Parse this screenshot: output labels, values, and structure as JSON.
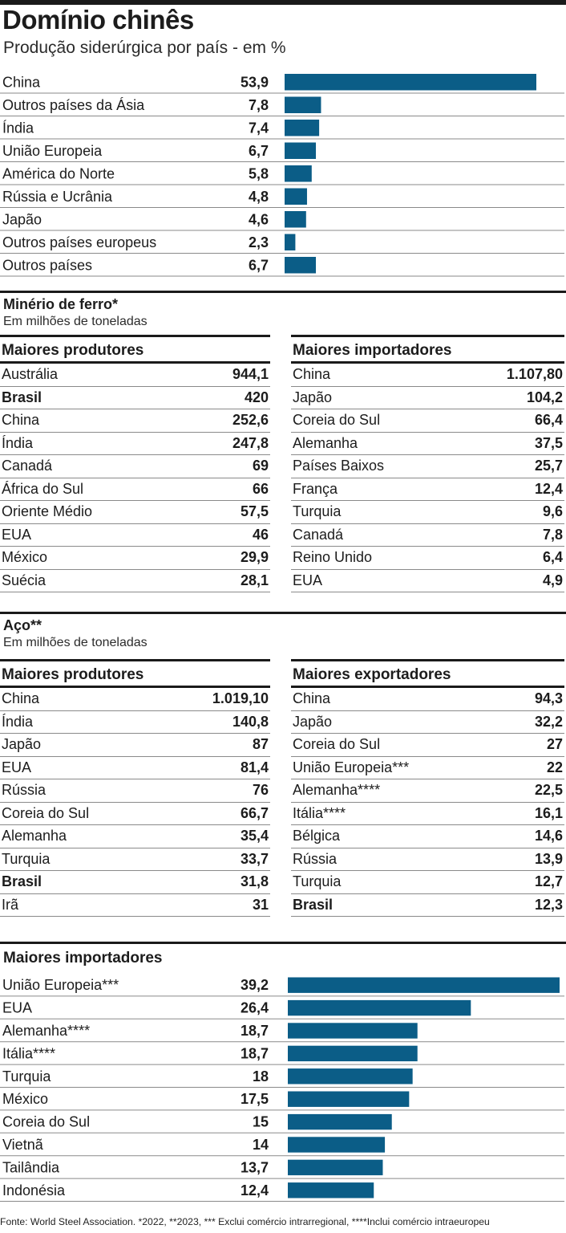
{
  "title": "Domínio chinês",
  "subtitle": "Produção siderúrgica por país - em %",
  "chart_data": [
    {
      "type": "bar",
      "title": "Produção siderúrgica por país - em %",
      "categories": [
        "China",
        "Outros países da Ásia",
        "Índia",
        "União Europeia",
        "América do Norte",
        "Rússia e Ucrânia",
        "Japão",
        "Outros países europeus",
        "Outros países"
      ],
      "labels": [
        "53,9",
        "7,8",
        "7,4",
        "6,7",
        "5,8",
        "4,8",
        "4,6",
        "2,3",
        "6,7"
      ],
      "values": [
        53.9,
        7.8,
        7.4,
        6.7,
        5.8,
        4.8,
        4.6,
        2.3,
        6.7
      ],
      "xlim": [
        0,
        53.9
      ],
      "color": "#0b5d87"
    },
    {
      "type": "bar",
      "title": "Maiores importadores",
      "categories": [
        "União Europeia***",
        "EUA",
        "Alemanha****",
        "Itália****",
        "Turquia",
        "México",
        "Coreia do Sul",
        "Vietnã",
        "Tailândia",
        "Indonésia"
      ],
      "labels": [
        "39,2",
        "26,4",
        "18,7",
        "18,7",
        "18",
        "17,5",
        "15",
        "14",
        "13,7",
        "12,4"
      ],
      "values": [
        39.2,
        26.4,
        18.7,
        18.7,
        18,
        17.5,
        15,
        14,
        13.7,
        12.4
      ],
      "xlim": [
        0,
        39.2
      ],
      "color": "#0b5d87"
    }
  ],
  "iron_ore": {
    "title": "Minério de ferro*",
    "subtitle": "Em milhões de toneladas",
    "producers": {
      "header": "Maiores produtores",
      "rows": [
        {
          "name": "Austrália",
          "value": "944,1",
          "bold": false
        },
        {
          "name": "Brasil",
          "value": "420",
          "bold": true
        },
        {
          "name": "China",
          "value": "252,6",
          "bold": false
        },
        {
          "name": "Índia",
          "value": "247,8",
          "bold": false
        },
        {
          "name": "Canadá",
          "value": "69",
          "bold": false
        },
        {
          "name": "África do Sul",
          "value": "66",
          "bold": false
        },
        {
          "name": "Oriente Médio",
          "value": "57,5",
          "bold": false
        },
        {
          "name": "EUA",
          "value": "46",
          "bold": false
        },
        {
          "name": "México",
          "value": "29,9",
          "bold": false
        },
        {
          "name": "Suécia",
          "value": "28,1",
          "bold": false
        }
      ]
    },
    "importers": {
      "header": "Maiores importadores",
      "rows": [
        {
          "name": "China",
          "value": "1.107,80",
          "bold": false
        },
        {
          "name": "Japão",
          "value": "104,2",
          "bold": false
        },
        {
          "name": "Coreia do Sul",
          "value": "66,4",
          "bold": false
        },
        {
          "name": "Alemanha",
          "value": "37,5",
          "bold": false
        },
        {
          "name": "Países Baixos",
          "value": "25,7",
          "bold": false
        },
        {
          "name": "França",
          "value": "12,4",
          "bold": false
        },
        {
          "name": "Turquia",
          "value": "9,6",
          "bold": false
        },
        {
          "name": "Canadá",
          "value": "7,8",
          "bold": false
        },
        {
          "name": "Reino Unido",
          "value": "6,4",
          "bold": false
        },
        {
          "name": "EUA",
          "value": "4,9",
          "bold": false
        }
      ]
    }
  },
  "steel": {
    "title": "Aço**",
    "subtitle": "Em milhões de toneladas",
    "producers": {
      "header": "Maiores produtores",
      "rows": [
        {
          "name": "China",
          "value": "1.019,10",
          "bold": false
        },
        {
          "name": "Índia",
          "value": "140,8",
          "bold": false
        },
        {
          "name": "Japão",
          "value": "87",
          "bold": false
        },
        {
          "name": "EUA",
          "value": "81,4",
          "bold": false
        },
        {
          "name": "Rússia",
          "value": "76",
          "bold": false
        },
        {
          "name": "Coreia do Sul",
          "value": "66,7",
          "bold": false
        },
        {
          "name": "Alemanha",
          "value": "35,4",
          "bold": false
        },
        {
          "name": "Turquia",
          "value": "33,7",
          "bold": false
        },
        {
          "name": "Brasil",
          "value": "31,8",
          "bold": true
        },
        {
          "name": "Irã",
          "value": "31",
          "bold": false
        }
      ]
    },
    "exporters": {
      "header": "Maiores exportadores",
      "rows": [
        {
          "name": "China",
          "value": "94,3",
          "bold": false
        },
        {
          "name": "Japão",
          "value": "32,2",
          "bold": false
        },
        {
          "name": "Coreia do Sul",
          "value": "27",
          "bold": false
        },
        {
          "name": "União Europeia***",
          "value": "22",
          "bold": false
        },
        {
          "name": "Alemanha****",
          "value": "22,5",
          "bold": false
        },
        {
          "name": "Itália****",
          "value": "16,1",
          "bold": false
        },
        {
          "name": "Bélgica",
          "value": "14,6",
          "bold": false
        },
        {
          "name": "Rússia",
          "value": "13,9",
          "bold": false
        },
        {
          "name": "Turquia",
          "value": "12,7",
          "bold": false
        },
        {
          "name": "Brasil",
          "value": "12,3",
          "bold": true
        }
      ]
    }
  },
  "footer": "Fonte: World Steel Association. *2022, **2023, *** Exclui comércio intrarregional, ****Inclui comércio intraeuropeu"
}
